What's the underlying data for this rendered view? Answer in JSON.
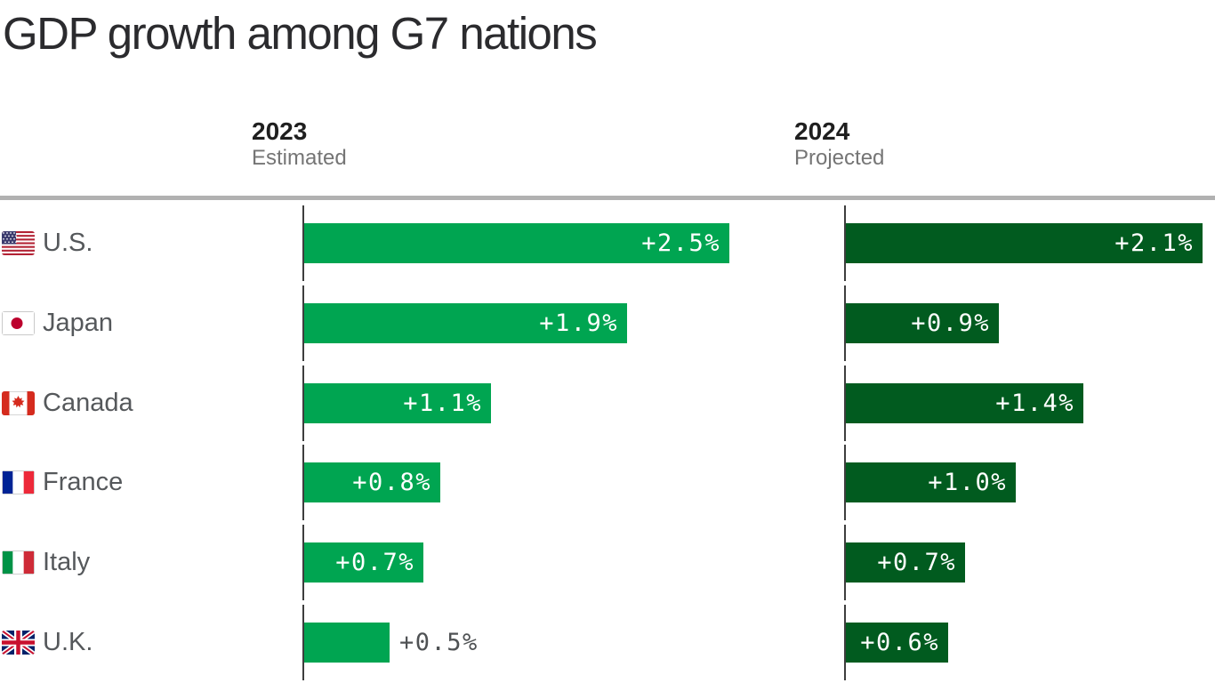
{
  "title": "GDP growth among G7 nations",
  "columns": [
    {
      "year": "2023",
      "subtitle": "Estimated"
    },
    {
      "year": "2024",
      "subtitle": "Projected"
    }
  ],
  "chart_data": {
    "type": "bar",
    "orientation": "horizontal",
    "unit": "percent GDP growth",
    "categories": [
      "U.S.",
      "Japan",
      "Canada",
      "France",
      "Italy",
      "U.K."
    ],
    "flags": [
      "us",
      "japan",
      "canada",
      "france",
      "italy",
      "uk"
    ],
    "series": [
      {
        "name": "2023 Estimated",
        "color": "#00a551",
        "values": [
          2.5,
          1.9,
          1.1,
          0.8,
          0.7,
          0.5
        ],
        "labels": [
          "+2.5%",
          "+1.9%",
          "+1.1%",
          "+0.8%",
          "+0.7%",
          "+0.5%"
        ]
      },
      {
        "name": "2024 Projected",
        "color": "#015b1f",
        "values": [
          2.1,
          0.9,
          1.4,
          1.0,
          0.7,
          0.6
        ],
        "labels": [
          "+2.1%",
          "+0.9%",
          "+1.4%",
          "+1.0%",
          "+0.7%",
          "+0.6%"
        ]
      }
    ],
    "xlim": [
      0,
      2.6
    ],
    "grid": false,
    "legend_position": "column-headers",
    "value_label_inside_color": "#ffffff",
    "value_label_outside_color": "#4f5254"
  }
}
